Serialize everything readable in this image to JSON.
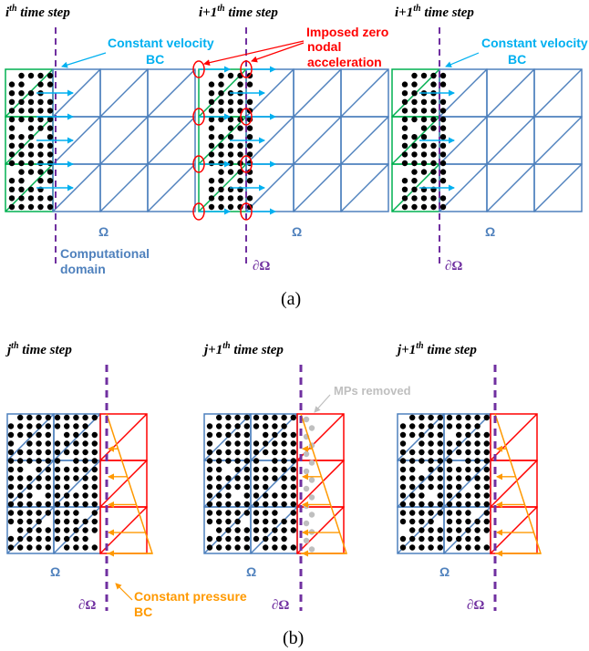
{
  "colors": {
    "grid_blue": "#4F81BD",
    "green": "#00B050",
    "red": "#FF0000",
    "orange": "#FF9900",
    "cyan": "#00B0F0",
    "purple": "#7030A0",
    "gray_point": "#BFBFBF",
    "point": "#000000"
  },
  "panel_a": {
    "caption": "(a)",
    "subpanels": [
      {
        "title_base": "i",
        "title_sup": "th",
        "title_rest": " time step"
      },
      {
        "title_base": "i+1",
        "title_sup": "th",
        "title_rest": " time step"
      },
      {
        "title_base": "i+1",
        "title_sup": "th",
        "title_rest": " time step"
      }
    ],
    "labels": {
      "constant_velocity_1": "Constant velocity",
      "constant_velocity_2": "BC",
      "imposed_1": "Imposed zero",
      "imposed_2": "nodal",
      "imposed_3": "acceleration",
      "omega": "Ω",
      "computational_1": "Computational",
      "computational_2": "domain",
      "boundary": "∂Ω"
    }
  },
  "panel_b": {
    "caption": "(b)",
    "subpanels": [
      {
        "title_base": "j",
        "title_sup": "th",
        "title_rest": " time step"
      },
      {
        "title_base": "j+1",
        "title_sup": "th",
        "title_rest": " time step"
      },
      {
        "title_base": "j+1",
        "title_sup": "th",
        "title_rest": " time step"
      }
    ],
    "labels": {
      "mps_removed": "MPs removed",
      "constant_pressure_1": "Constant pressure",
      "constant_pressure_2": "BC",
      "omega": "Ω",
      "boundary": "∂Ω"
    }
  }
}
